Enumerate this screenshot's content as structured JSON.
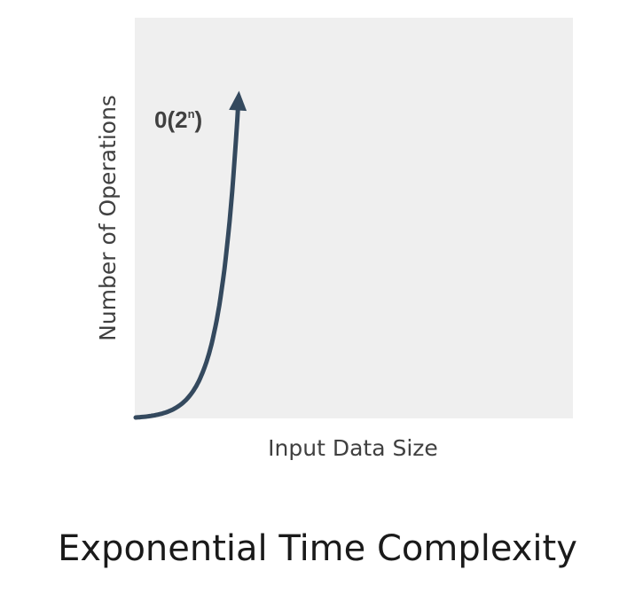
{
  "caption": "Exponential Time Complexity",
  "chart_data": {
    "type": "line",
    "title": "",
    "xlabel": "Input Data Size",
    "ylabel": "Number of Operations",
    "grid": false,
    "legend": "none",
    "series": [
      {
        "name": "O(2ⁿ)",
        "label_base": "0(2",
        "label_sup": "n",
        "label_close": ")",
        "x": [
          0,
          1,
          2,
          3,
          4,
          5,
          6,
          7,
          8
        ],
        "y": [
          1,
          2,
          4,
          8,
          16,
          32,
          64,
          128,
          256
        ],
        "color": "#34495e",
        "arrow": true
      }
    ],
    "xlim": [
      0,
      34
    ],
    "ylim": [
      1,
      320
    ]
  },
  "colors": {
    "plot_background": "#efefef",
    "axis_text": "#404040",
    "curve": "#34495e"
  }
}
